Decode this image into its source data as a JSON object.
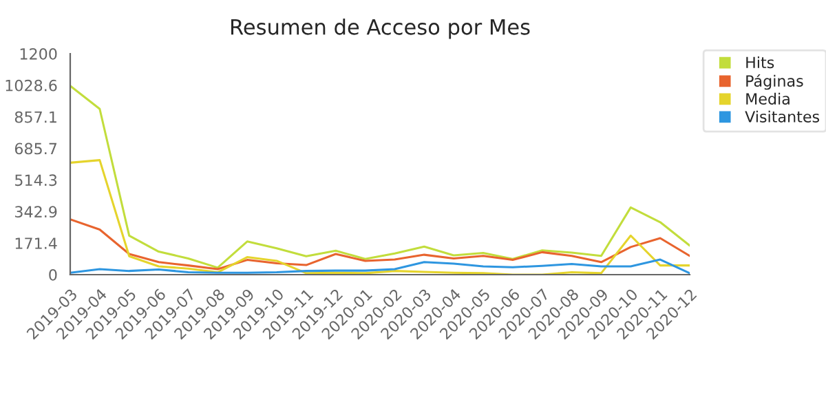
{
  "chart_data": {
    "type": "line",
    "title": "Resumen de Acceso por Mes",
    "categories": [
      "2019-03",
      "2019-04",
      "2019-05",
      "2019-06",
      "2019-07",
      "2019-08",
      "2019-09",
      "2019-10",
      "2019-11",
      "2019-12",
      "2020-01",
      "2020-02",
      "2020-03",
      "2020-04",
      "2020-05",
      "2020-06",
      "2020-07",
      "2020-08",
      "2020-09",
      "2020-10",
      "2020-11",
      "2020-12"
    ],
    "series": [
      {
        "name": "Hits",
        "color": "#c2dd3c",
        "values": [
          1025,
          900,
          212,
          125,
          88,
          38,
          180,
          143,
          100,
          130,
          85,
          115,
          152,
          105,
          118,
          85,
          132,
          120,
          102,
          365,
          285,
          158
        ]
      },
      {
        "name": "Páginas",
        "color": "#e8642e",
        "values": [
          300,
          245,
          112,
          68,
          50,
          30,
          80,
          62,
          52,
          112,
          75,
          82,
          108,
          88,
          102,
          80,
          122,
          102,
          68,
          150,
          198,
          102
        ]
      },
      {
        "name": "Media",
        "color": "#e5d42c",
        "values": [
          608,
          622,
          100,
          45,
          33,
          13,
          95,
          75,
          8,
          10,
          8,
          20,
          15,
          10,
          8,
          0,
          0,
          13,
          8,
          212,
          50,
          50
        ]
      },
      {
        "name": "Visitantes",
        "color": "#2e96e0",
        "values": [
          10,
          30,
          20,
          28,
          13,
          10,
          10,
          13,
          20,
          22,
          22,
          30,
          68,
          60,
          45,
          40,
          48,
          58,
          45,
          45,
          82,
          8
        ]
      }
    ],
    "ylim": [
      0,
      1200
    ],
    "yticks": [
      0,
      {
        "value": 171.4,
        "label": "171.4"
      },
      {
        "value": 342.9,
        "label": "342.9"
      },
      {
        "value": 514.3,
        "label": "514.3"
      },
      {
        "value": 685.7,
        "label": "685.7"
      },
      {
        "value": 857.1,
        "label": "857.1"
      },
      {
        "value": 1028.6,
        "label": "1028.6"
      },
      1200
    ],
    "grid": false,
    "legend": "top right",
    "marker": "none",
    "line_style": "solid"
  }
}
